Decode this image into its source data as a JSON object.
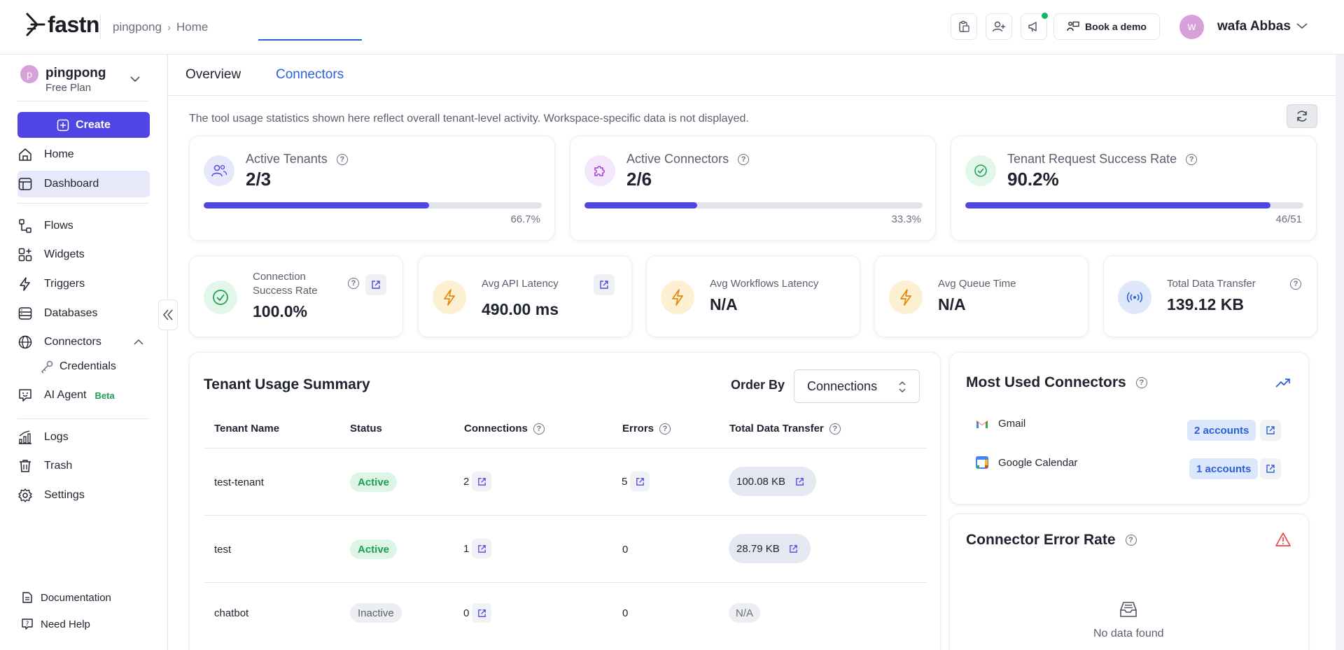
{
  "header": {
    "logo_text": "fastn",
    "breadcrumb": [
      "pingpong",
      "Home"
    ],
    "book_demo_label": "Book a demo",
    "user_initial": "w",
    "user_name": "wafa Abbas"
  },
  "sidebar": {
    "workspace_initial": "p",
    "workspace_name": "pingpong",
    "workspace_plan": "Free Plan",
    "create_label": "Create",
    "nav": {
      "home": "Home",
      "dashboard": "Dashboard",
      "flows": "Flows",
      "widgets": "Widgets",
      "triggers": "Triggers",
      "databases": "Databases",
      "connectors": "Connectors",
      "credentials": "Credentials",
      "ai_agent": "AI Agent",
      "ai_agent_badge": "Beta",
      "logs": "Logs",
      "trash": "Trash",
      "settings": "Settings"
    },
    "footer": {
      "documentation": "Documentation",
      "need_help": "Need Help"
    }
  },
  "tabs": {
    "overview": "Overview",
    "connectors": "Connectors"
  },
  "info_text": "The tool usage statistics shown here reflect overall tenant-level activity. Workspace-specific data is not displayed.",
  "top_stats": {
    "tenants": {
      "label": "Active Tenants",
      "value": "2/3",
      "progress": 0.667,
      "caption": "66.7%"
    },
    "connectors": {
      "label": "Active Connectors",
      "value": "2/6",
      "progress": 0.333,
      "caption": "33.3%"
    },
    "success": {
      "label": "Tenant Request Success Rate",
      "value": "90.2%",
      "progress": 0.902,
      "caption": "46/51"
    }
  },
  "small_stats": {
    "connection_success": {
      "label_line1": "Connection",
      "label_line2": "Success Rate",
      "value": "100.0%"
    },
    "api_latency": {
      "label": "Avg API Latency",
      "value": "490.00 ms"
    },
    "workflow_latency": {
      "label": "Avg Workflows Latency",
      "value": "N/A"
    },
    "queue_time": {
      "label": "Avg Queue Time",
      "value": "N/A"
    },
    "data_transfer": {
      "label": "Total Data Transfer",
      "value": "139.12 KB"
    }
  },
  "tenant_usage": {
    "title": "Tenant Usage Summary",
    "order_by_label": "Order By",
    "order_by_value": "Connections",
    "columns": {
      "name": "Tenant Name",
      "status": "Status",
      "connections": "Connections",
      "errors": "Errors",
      "transfer": "Total Data Transfer"
    },
    "rows": [
      {
        "name": "test-tenant",
        "status": "Active",
        "connections": "2",
        "errors": "5",
        "transfer": "100.08 KB"
      },
      {
        "name": "test",
        "status": "Active",
        "connections": "1",
        "errors": "0",
        "transfer": "28.79 KB"
      },
      {
        "name": "chatbot",
        "status": "Inactive",
        "connections": "0",
        "errors": "0",
        "transfer": "N/A"
      }
    ]
  },
  "most_used": {
    "title": "Most Used Connectors",
    "items": [
      {
        "name": "Gmail",
        "accounts": "2 accounts"
      },
      {
        "name": "Google Calendar",
        "accounts": "1 accounts"
      }
    ]
  },
  "error_rate": {
    "title": "Connector Error Rate",
    "empty": "No data found"
  },
  "colors": {
    "accent": "#4f46e5",
    "link": "#2b5fd9",
    "active_green": "#1e9c51",
    "warning_red": "#e5484d"
  }
}
